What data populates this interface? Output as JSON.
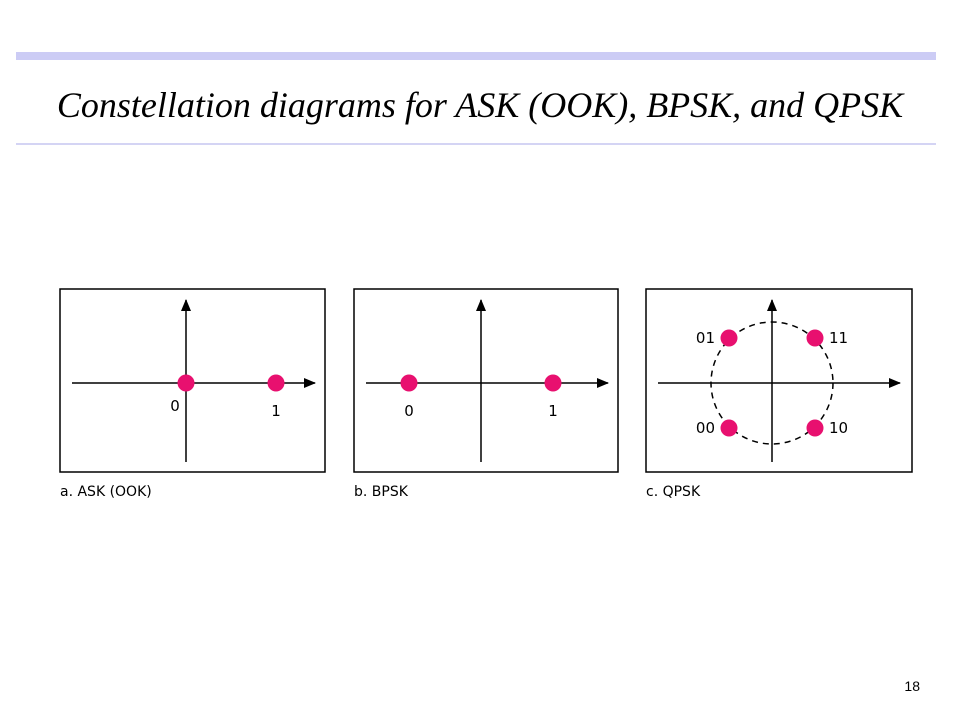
{
  "slide": {
    "title": "Constellation diagrams for ASK (OOK), BPSK, and QPSK",
    "page_number": "18"
  },
  "colors": {
    "point": "#e8106f",
    "title_bar": "#ccccf5",
    "title_rule": "#d4d4f4"
  },
  "panels": [
    {
      "caption": "a. ASK (OOK)",
      "scheme": "ASK (OOK)",
      "has_circle": false,
      "points": [
        {
          "i": 0,
          "q": 0,
          "label": "0"
        },
        {
          "i": 1,
          "q": 0,
          "label": "1"
        }
      ]
    },
    {
      "caption": "b. BPSK",
      "scheme": "BPSK",
      "has_circle": false,
      "points": [
        {
          "i": -1,
          "q": 0,
          "label": "0"
        },
        {
          "i": 1,
          "q": 0,
          "label": "1"
        }
      ]
    },
    {
      "caption": "c. QPSK",
      "scheme": "QPSK",
      "has_circle": true,
      "points": [
        {
          "i": -1,
          "q": 1,
          "label": "01"
        },
        {
          "i": 1,
          "q": 1,
          "label": "11"
        },
        {
          "i": -1,
          "q": -1,
          "label": "00"
        },
        {
          "i": 1,
          "q": -1,
          "label": "10"
        }
      ]
    }
  ]
}
